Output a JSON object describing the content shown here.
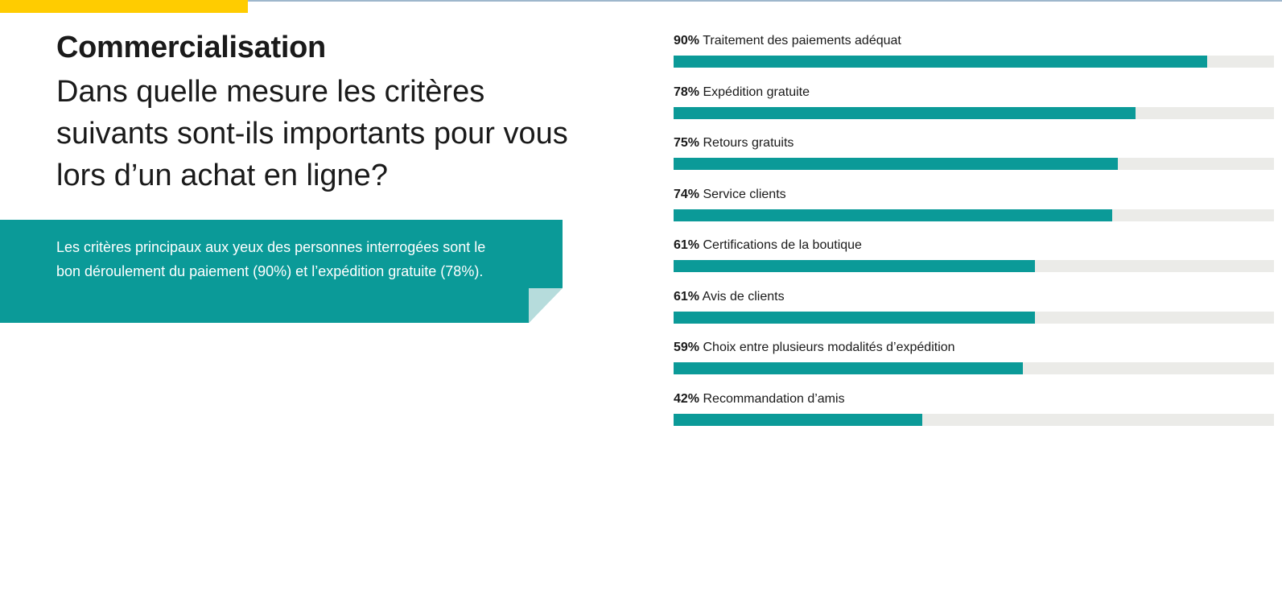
{
  "header": {
    "title": "Commercialisation",
    "question": "Dans quelle mesure les critères suivants sont-ils importants pour vous lors d’un achat en ligne?"
  },
  "callout": {
    "text": "Les critères principaux aux yeux des personnes interrogées sont le bon déroulement du paiement (90%) et l’expédition gratuite (78%)."
  },
  "colors": {
    "accent": "#ffcc00",
    "bar": "#0b9a98",
    "track": "#ebebe8"
  },
  "chart_data": {
    "type": "bar",
    "orientation": "horizontal",
    "xlim": [
      0,
      100
    ],
    "categories": [
      "Traitement des paiements adéquat",
      "Expédition gratuite",
      "Retours gratuits",
      "Service clients",
      "Certifications de la boutique",
      "Avis de clients",
      "Choix entre plusieurs modalités d’expédition",
      "Recommandation d’amis"
    ],
    "values": [
      90,
      78,
      75,
      74,
      61,
      61,
      59,
      42
    ],
    "value_labels": [
      "90%",
      "78%",
      "75%",
      "74%",
      "61%",
      "61%",
      "59%",
      "42%"
    ]
  }
}
